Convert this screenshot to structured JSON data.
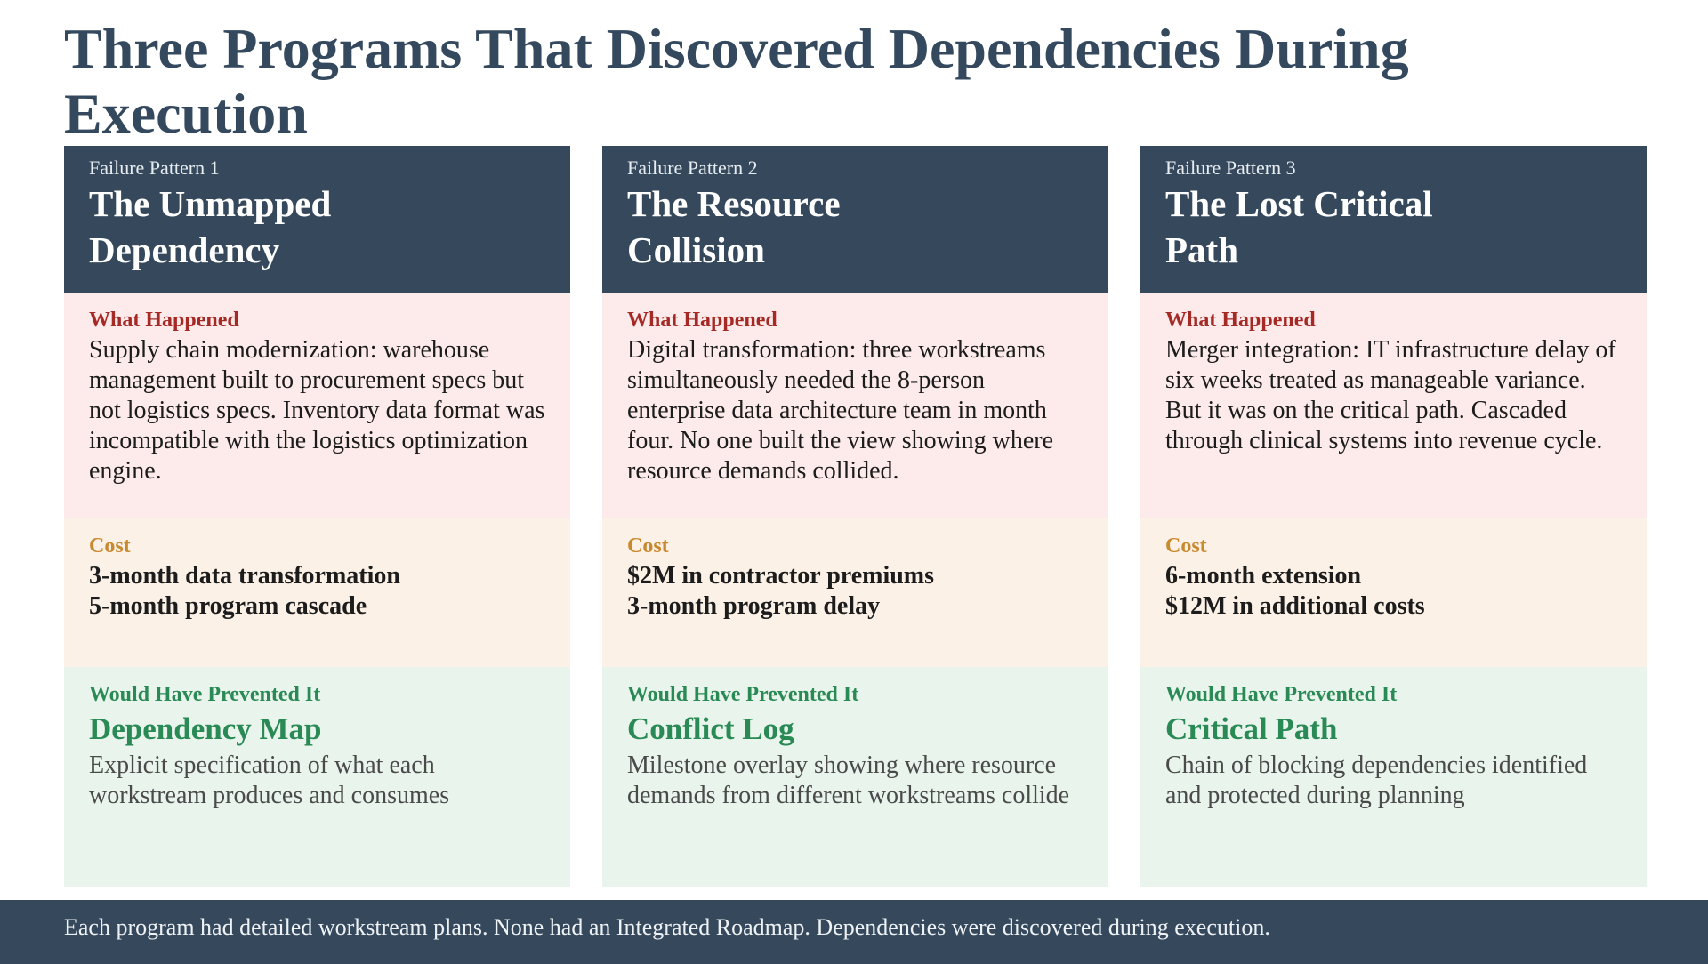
{
  "page": {
    "title": "Three Programs That Discovered Dependencies During Execution"
  },
  "labels": {
    "what_happened": "What Happened",
    "cost": "Cost",
    "would_have_prevented": "Would Have Prevented It"
  },
  "cards": [
    {
      "pattern_label": "Failure Pattern 1",
      "title": "The Unmapped Dependency",
      "what_happened": "Supply chain modernization: warehouse management built to procurement specs but not logistics specs. Inventory data format was incompatible with the logistics optimization engine.",
      "cost_lines": [
        "3-month data transformation",
        "5-month program cascade"
      ],
      "prevention_title": "Dependency Map",
      "prevention_text": "Explicit specification of what each workstream produces and consumes"
    },
    {
      "pattern_label": "Failure Pattern 2",
      "title": "The Resource Collision",
      "what_happened": "Digital transformation: three workstreams simultaneously needed the 8-person enterprise data architecture team in month four. No one built the view showing where resource demands collided.",
      "cost_lines": [
        "$2M in contractor premiums",
        "3-month program delay"
      ],
      "prevention_title": "Conflict Log",
      "prevention_text": "Milestone overlay showing where resource demands from different workstreams collide"
    },
    {
      "pattern_label": "Failure Pattern 3",
      "title": "The Lost Critical Path",
      "what_happened": "Merger integration: IT infrastructure delay of six weeks treated as manageable variance. But it was on the critical path. Cascaded through clinical systems into revenue cycle.",
      "cost_lines": [
        "6-month extension",
        "$12M in additional costs"
      ],
      "prevention_title": "Critical Path",
      "prevention_text": "Chain of blocking dependencies identified and protected during planning"
    }
  ],
  "footer": {
    "text": "Each program had detailed workstream plans. None had an Integrated Roadmap. Dependencies were discovered during execution."
  },
  "colors": {
    "header_bg": "#36495c",
    "title_text": "#34495e",
    "what_bg": "#fcebea",
    "what_label": "#a52a26",
    "cost_bg": "#fcf1e7",
    "cost_label": "#c9892e",
    "prevent_bg": "#e8f4ec",
    "prevent_label": "#2a8a55"
  }
}
